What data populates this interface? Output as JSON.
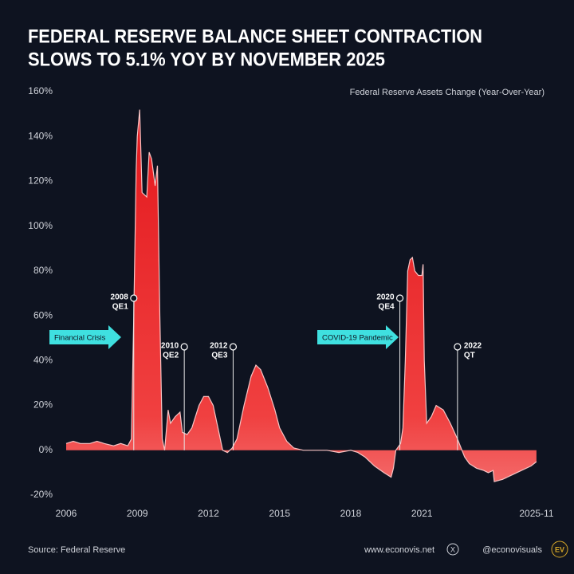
{
  "chart_data": {
    "type": "area",
    "title_lines": [
      "FEDERAL RESERVE BALANCE SHEET CONTRACTION",
      "SLOWS TO 5.1% YOY BY NOVEMBER 2025"
    ],
    "x": [
      2006.0,
      2006.3,
      2006.6,
      2007.0,
      2007.3,
      2007.6,
      2008.0,
      2008.3,
      2008.6,
      2008.75,
      2008.85,
      2008.95,
      2009.0,
      2009.1,
      2009.2,
      2009.4,
      2009.5,
      2009.6,
      2009.75,
      2009.85,
      2009.95,
      2010.05,
      2010.15,
      2010.3,
      2010.4,
      2010.6,
      2010.8,
      2010.9,
      2011.1,
      2011.3,
      2011.6,
      2011.8,
      2012.0,
      2012.2,
      2012.4,
      2012.6,
      2012.8,
      2013.0,
      2013.2,
      2013.5,
      2013.8,
      2014.0,
      2014.2,
      2014.5,
      2014.8,
      2015.0,
      2015.3,
      2015.6,
      2016.0,
      2016.5,
      2017.0,
      2017.5,
      2018.0,
      2018.3,
      2018.6,
      2019.0,
      2019.4,
      2019.7,
      2019.8,
      2019.9,
      2020.1,
      2020.2,
      2020.3,
      2020.4,
      2020.5,
      2020.6,
      2020.7,
      2020.85,
      2021.0,
      2021.05,
      2021.1,
      2021.2,
      2021.4,
      2021.6,
      2021.9,
      2022.2,
      2022.5,
      2022.8,
      2023.0,
      2023.3,
      2023.6,
      2023.8,
      2024.0,
      2024.05,
      2024.4,
      2024.8,
      2025.2,
      2025.6,
      2025.83
    ],
    "series": [
      {
        "name": "Federal Reserve Assets Change (Year-Over-Year)",
        "color": "#e3171c",
        "values": [
          3,
          4,
          3,
          3,
          4,
          3,
          2,
          3,
          2,
          5,
          60,
          125,
          140,
          152,
          115,
          113,
          133,
          130,
          118,
          127,
          60,
          5,
          0,
          18,
          12,
          15,
          17,
          8,
          7,
          10,
          20,
          24,
          24,
          20,
          10,
          0,
          -1,
          1,
          5,
          20,
          33,
          38,
          36,
          28,
          18,
          10,
          4,
          1,
          0,
          0,
          0,
          -1,
          0,
          -1,
          -3,
          -7,
          -10,
          -12,
          -8,
          0,
          3,
          10,
          40,
          80,
          85,
          86,
          80,
          78,
          78,
          83,
          40,
          12,
          15,
          20,
          18,
          12,
          5,
          -3,
          -6,
          -8,
          -9,
          -10,
          -9,
          -14,
          -13,
          -11,
          -9,
          -7,
          -5.1
        ]
      }
    ],
    "xlim": [
      2006,
      2025.95
    ],
    "ylim": [
      -20,
      160
    ],
    "yticks": [
      {
        "value": -20,
        "label": "-20%"
      },
      {
        "value": 0,
        "label": "0%"
      },
      {
        "value": 20,
        "label": "20%"
      },
      {
        "value": 40,
        "label": "40%"
      },
      {
        "value": 60,
        "label": "60%"
      },
      {
        "value": 80,
        "label": "80%"
      },
      {
        "value": 100,
        "label": "100%"
      },
      {
        "value": 120,
        "label": "120%"
      },
      {
        "value": 140,
        "label": "140%"
      },
      {
        "value": 160,
        "label": "160%"
      }
    ],
    "xticks": [
      2006,
      2009,
      2012,
      2015,
      2018,
      2021,
      {
        "value": 2025.83,
        "label": "2025-11"
      }
    ],
    "annotations": [
      {
        "x": 2008.85,
        "year": "2008",
        "label": "QE1"
      },
      {
        "x": 2010.98,
        "year": "2010",
        "label": "QE2"
      },
      {
        "x": 2013.04,
        "year": "2012",
        "label": "QE3"
      },
      {
        "x": 2020.07,
        "year": "2020",
        "label": "QE4"
      },
      {
        "x": 2022.5,
        "year": "2022",
        "label": "QT"
      }
    ],
    "events": [
      "Financial Crisis",
      "COVID-19 Pandemic"
    ],
    "source": "Source: Federal Reserve",
    "website": "www.econovis.net",
    "handle": "@econovisuals",
    "logo": "EV"
  }
}
